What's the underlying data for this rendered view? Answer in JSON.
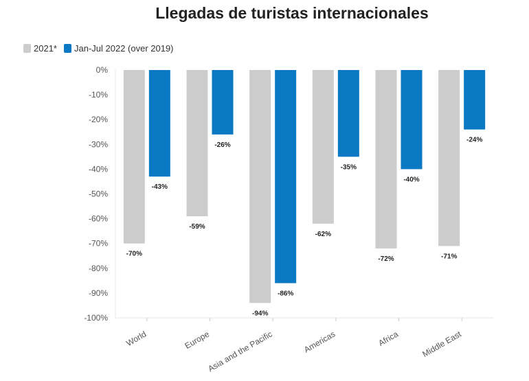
{
  "chart_data": {
    "type": "bar",
    "title": "Llegadas de turistas internacionales",
    "categories": [
      "World",
      "Europe",
      "Asia and the Pacific",
      "Americas",
      "Africa",
      "Middle East"
    ],
    "series": [
      {
        "name": "2021*",
        "color": "#cccccc",
        "values": [
          -70,
          -59,
          -94,
          -62,
          -72,
          -71
        ]
      },
      {
        "name": "Jan-Jul 2022 (over 2019)",
        "color": "#0a78c2",
        "values": [
          -43,
          -26,
          -86,
          -35,
          -40,
          -24
        ]
      }
    ],
    "ylim": [
      -100,
      0
    ],
    "yticks": [
      "0%",
      "-10%",
      "-20%",
      "-30%",
      "-40%",
      "-50%",
      "-60%",
      "-70%",
      "-80%",
      "-90%",
      "-100%"
    ],
    "xlabel": "",
    "ylabel": "",
    "legend_position": "top-left",
    "grid": false
  }
}
